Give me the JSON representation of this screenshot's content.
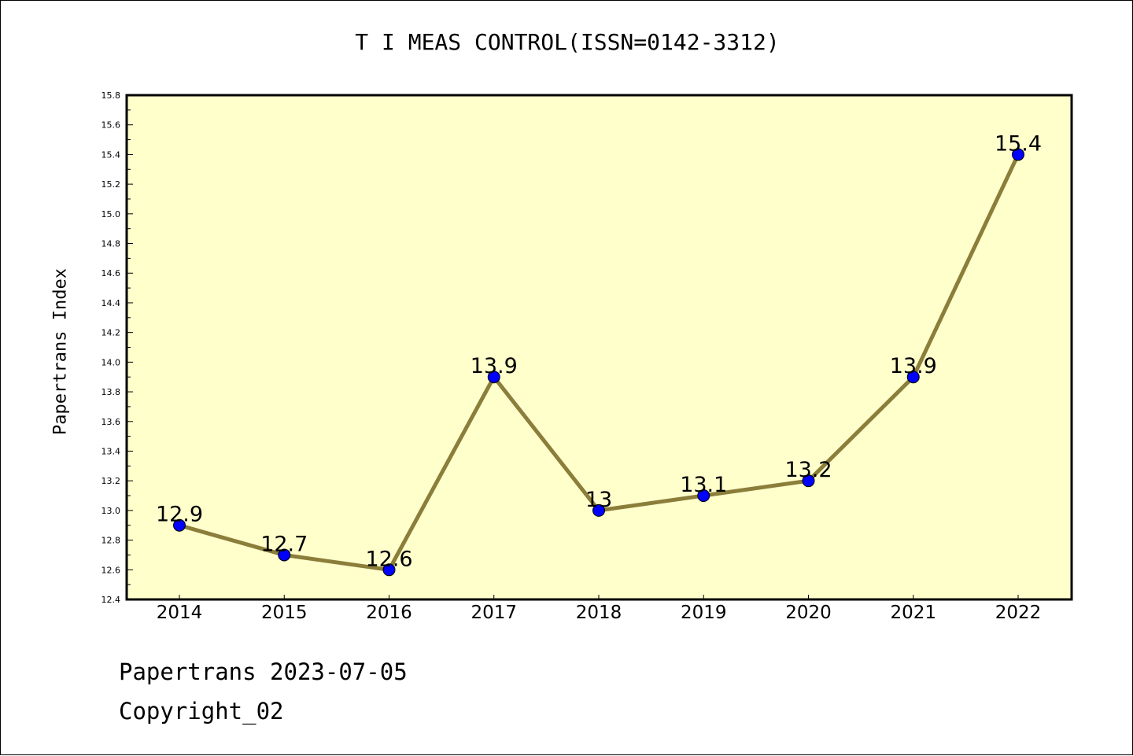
{
  "title": "T I MEAS CONTROL(ISSN=0142-3312)",
  "footer": {
    "line1": "Papertrans 2023-07-05",
    "line2": "Copyright_02"
  },
  "colors": {
    "plot_bg": "#ffffcc",
    "line": "#8b7d3a",
    "marker": "#0000ff"
  },
  "chart_data": {
    "type": "line",
    "title": "T I MEAS CONTROL(ISSN=0142-3312)",
    "xlabel": "",
    "ylabel": "Papertrans Index",
    "categories": [
      "2014",
      "2015",
      "2016",
      "2017",
      "2018",
      "2019",
      "2020",
      "2021",
      "2022"
    ],
    "values": [
      12.9,
      12.7,
      12.6,
      13.9,
      13.0,
      13.1,
      13.2,
      13.9,
      15.4
    ],
    "data_labels": [
      "12.9",
      "12.7",
      "12.6",
      "13.9",
      "13",
      "13.1",
      "13.2",
      "13.9",
      "15.4"
    ],
    "ylim": [
      12.4,
      15.8
    ],
    "yticks": [
      "12.4",
      "12.6",
      "12.8",
      "13.0",
      "13.2",
      "13.4",
      "13.6",
      "13.8",
      "14.0",
      "14.2",
      "14.4",
      "14.6",
      "14.8",
      "15.0",
      "15.2",
      "15.4",
      "15.6",
      "15.8"
    ],
    "grid": false,
    "legend": "none"
  }
}
